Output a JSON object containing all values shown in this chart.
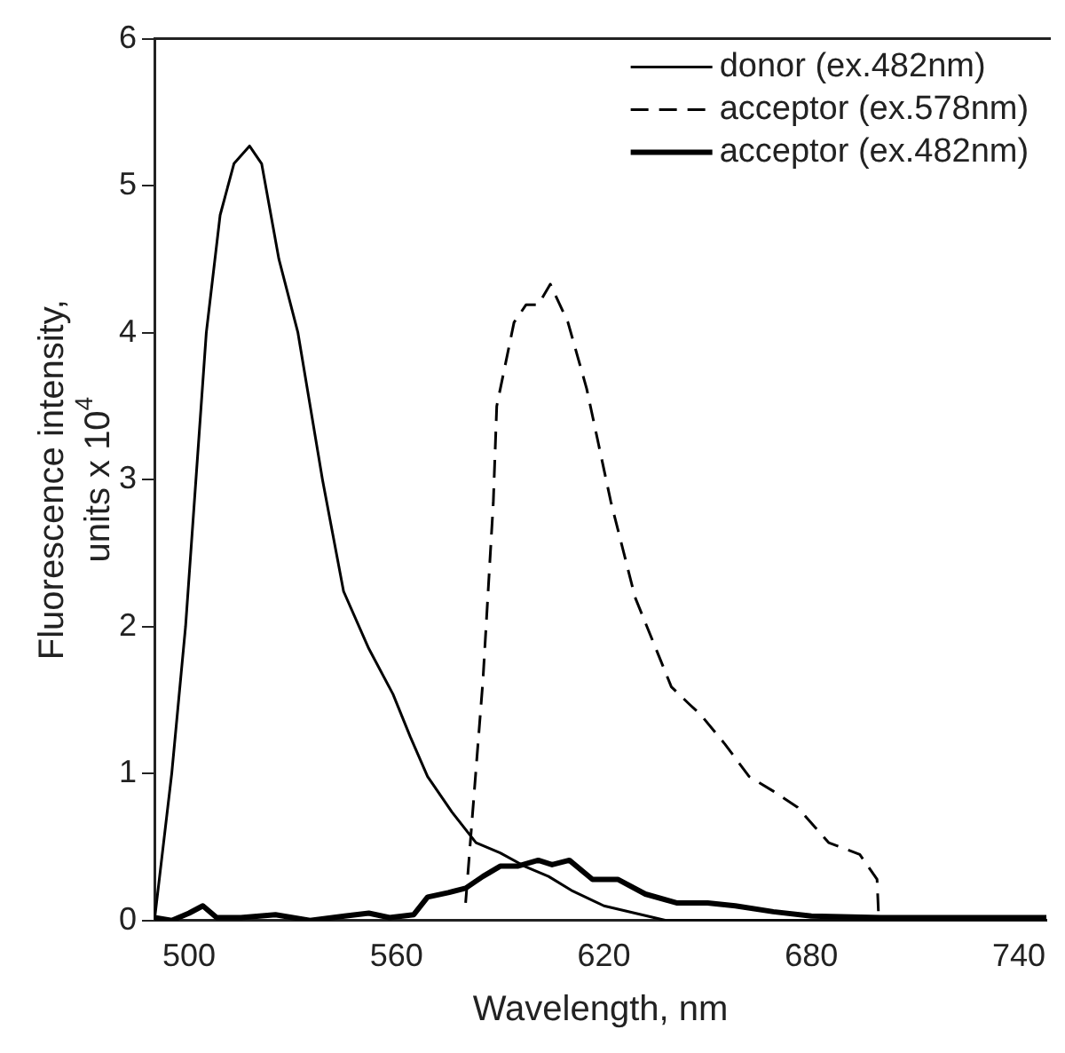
{
  "chart_data": {
    "type": "line",
    "xlabel": "Wavelength, nm",
    "ylabel": "Fluorescence intensity,\nunits x 10$^{4}$",
    "xlim": [
      490,
      748
    ],
    "ylim": [
      0,
      6
    ],
    "xticks": [
      500,
      560,
      620,
      680,
      740
    ],
    "yticks": [
      0,
      1,
      2,
      3,
      4,
      5,
      6
    ],
    "grid": false,
    "legend": "top right",
    "marker": "none",
    "series": [
      {
        "name": "donor (ex.482nm)",
        "color": "#000000",
        "line_style": "solid",
        "x": [
          490,
          492,
          495,
          499,
          502,
          505,
          509,
          513,
          517.5,
          521,
          526,
          531.5,
          538.6,
          544.7,
          552,
          559,
          564,
          569,
          576,
          583,
          590,
          597,
          604,
          611,
          620,
          629,
          638,
          650,
          680,
          748
        ],
        "values": [
          0,
          0.4,
          1.0,
          2.0,
          3.0,
          4.0,
          4.8,
          5.15,
          5.27,
          5.15,
          4.5,
          4.0,
          3.0,
          2.24,
          1.85,
          1.54,
          1.25,
          0.98,
          0.74,
          0.53,
          0.46,
          0.37,
          0.3,
          0.2,
          0.1,
          0.05,
          0,
          0,
          0,
          0
        ]
      },
      {
        "name": "acceptor (ex.578nm)",
        "color": "#000000",
        "line_style": "dashed",
        "x": [
          580,
          585,
          588,
          589,
          594,
          597.5,
          601,
          604.5,
          609.6,
          615,
          622,
          629,
          639.5,
          644.8,
          648,
          655,
          662,
          669,
          676,
          685,
          694,
          699,
          699.5
        ],
        "values": [
          0.12,
          1.63,
          2.84,
          3.5,
          4.07,
          4.19,
          4.19,
          4.33,
          4.07,
          3.62,
          2.85,
          2.2,
          1.59,
          1.47,
          1.4,
          1.2,
          0.98,
          0.88,
          0.77,
          0.53,
          0.45,
          0.28,
          0
        ]
      },
      {
        "name": "acceptor (ex.482nm)",
        "color": "#000000",
        "line_style": "solid",
        "x": [
          490,
          495,
          500,
          504,
          508,
          515,
          525,
          535,
          545,
          552,
          558,
          565,
          569,
          575,
          580,
          585,
          590,
          595,
          601,
          605,
          610,
          616.7,
          624,
          632,
          641,
          650,
          658,
          669,
          680,
          700,
          720,
          748
        ],
        "values": [
          0.02,
          0.0,
          0.05,
          0.1,
          0.02,
          0.02,
          0.04,
          0.0,
          0.03,
          0.05,
          0.02,
          0.04,
          0.16,
          0.19,
          0.22,
          0.3,
          0.37,
          0.37,
          0.41,
          0.38,
          0.41,
          0.28,
          0.28,
          0.18,
          0.12,
          0.12,
          0.1,
          0.06,
          0.03,
          0.02,
          0.02,
          0.02
        ]
      }
    ]
  }
}
